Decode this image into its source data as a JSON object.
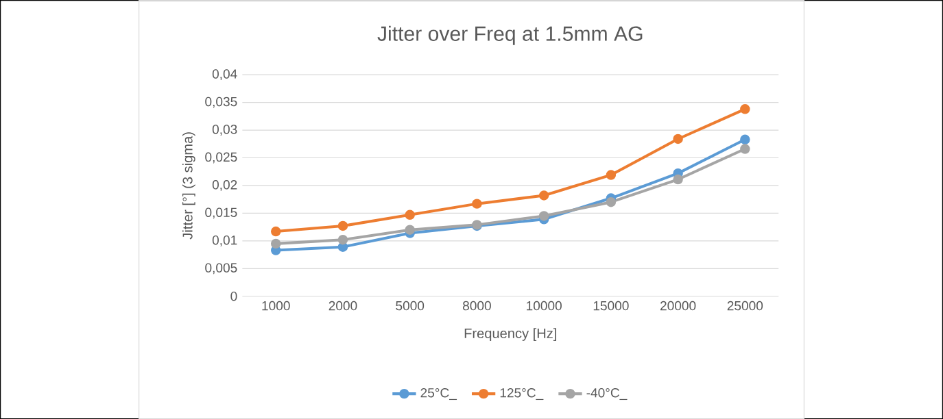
{
  "chart_data": {
    "type": "line",
    "title": "Jitter over Freq at 1.5mm AG",
    "xlabel": "Frequency [Hz]",
    "ylabel": "Jitter [°] (3 sigma)",
    "categories": [
      "1000",
      "2000",
      "5000",
      "8000",
      "10000",
      "15000",
      "20000",
      "25000"
    ],
    "series": [
      {
        "name": "25°C_",
        "color": "#5b9bd5",
        "values": [
          0.0083,
          0.0089,
          0.0114,
          0.0127,
          0.0139,
          0.0177,
          0.0222,
          0.0283
        ]
      },
      {
        "name": "125°C_",
        "color": "#ed7d31",
        "values": [
          0.0117,
          0.0127,
          0.0147,
          0.0167,
          0.0182,
          0.0219,
          0.0284,
          0.0338
        ]
      },
      {
        "name": "-40°C_",
        "color": "#a5a5a5",
        "values": [
          0.0095,
          0.0102,
          0.012,
          0.0129,
          0.0145,
          0.017,
          0.0211,
          0.0266
        ]
      }
    ],
    "ylim": [
      0,
      0.04
    ],
    "yticks": [
      {
        "value": 0,
        "label": "0"
      },
      {
        "value": 0.005,
        "label": "0,005"
      },
      {
        "value": 0.01,
        "label": "0,01"
      },
      {
        "value": 0.015,
        "label": "0,015"
      },
      {
        "value": 0.02,
        "label": "0,02"
      },
      {
        "value": 0.025,
        "label": "0,025"
      },
      {
        "value": 0.03,
        "label": "0,03"
      },
      {
        "value": 0.035,
        "label": "0,035"
      },
      {
        "value": 0.04,
        "label": "0,04"
      }
    ],
    "grid": "y",
    "legend": "bottom",
    "marker": "circle",
    "line_style": "solid"
  }
}
